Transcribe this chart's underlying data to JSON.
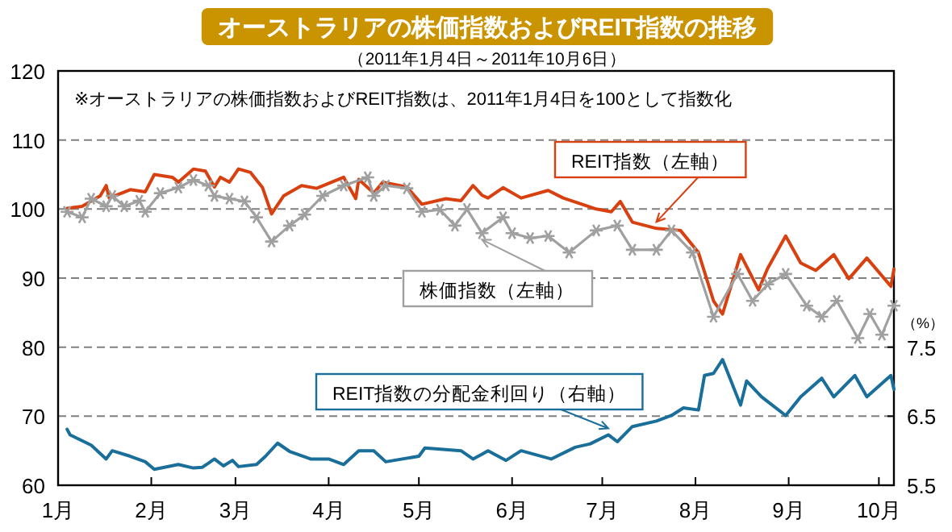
{
  "chart_data": {
    "type": "line",
    "title": "オーストラリアの株価指数およびREIT指数の推移",
    "subtitle": "（2011年1月4日～2011年10月6日）",
    "annotations": [
      "※オーストラリアの株価指数およびREIT指数は、2011年1月4日を100として指数化"
    ],
    "y2label": "（%）",
    "xlim": [
      "2011-01-01",
      "2011-10-06"
    ],
    "xticks": [
      {
        "value": "2011-01-01",
        "label": "1月"
      },
      {
        "value": "2011-02-01",
        "label": "2月"
      },
      {
        "value": "2011-03-01",
        "label": "3月"
      },
      {
        "value": "2011-04-01",
        "label": "4月"
      },
      {
        "value": "2011-05-01",
        "label": "5月"
      },
      {
        "value": "2011-06-01",
        "label": "6月"
      },
      {
        "value": "2011-07-01",
        "label": "7月"
      },
      {
        "value": "2011-08-01",
        "label": "8月"
      },
      {
        "value": "2011-09-01",
        "label": "9月"
      },
      {
        "value": "2011-10-01",
        "label": "10月"
      }
    ],
    "ylim": [
      60,
      120
    ],
    "yticks": [
      60,
      70,
      80,
      90,
      100,
      110,
      120
    ],
    "y2lim": [
      5.5,
      11.5
    ],
    "y2ticks": [
      5.5,
      6.5,
      7.5
    ],
    "grid": "y",
    "series": [
      {
        "name": "REIT指数（左軸）",
        "color": "#d9400f",
        "x": [
          "2011-01-04",
          "2011-01-09",
          "2011-01-15",
          "2011-01-17",
          "2011-01-18",
          "2011-01-25",
          "2011-01-30",
          "2011-02-02",
          "2011-02-08",
          "2011-02-10",
          "2011-02-15",
          "2011-02-19",
          "2011-02-22",
          "2011-02-24",
          "2011-02-27",
          "2011-03-02",
          "2011-03-06",
          "2011-03-10",
          "2011-03-13",
          "2011-03-17",
          "2011-03-23",
          "2011-03-28",
          "2011-04-06",
          "2011-04-10",
          "2011-04-11",
          "2011-04-16",
          "2011-04-19",
          "2011-04-27",
          "2011-05-02",
          "2011-05-10",
          "2011-05-15",
          "2011-05-19",
          "2011-05-22",
          "2011-05-24",
          "2011-05-29",
          "2011-06-04",
          "2011-06-13",
          "2011-06-18",
          "2011-06-29",
          "2011-07-04",
          "2011-07-07",
          "2011-07-11",
          "2011-07-19",
          "2011-07-27",
          "2011-08-02",
          "2011-08-07",
          "2011-08-10",
          "2011-08-16",
          "2011-08-22",
          "2011-08-25",
          "2011-08-31",
          "2011-09-05",
          "2011-09-10",
          "2011-09-16",
          "2011-09-21",
          "2011-09-27",
          "2011-10-05",
          "2011-10-06"
        ],
        "values": [
          100.1,
          100.4,
          101.9,
          103.4,
          101.6,
          102.8,
          102.5,
          105,
          104.6,
          103.9,
          105.8,
          105.5,
          103.2,
          104.6,
          103.9,
          105.8,
          105.3,
          103.1,
          99.3,
          101.9,
          103.4,
          103,
          104.6,
          101.5,
          104.3,
          102.3,
          103.9,
          103.2,
          100.7,
          101.5,
          101.2,
          103.4,
          102,
          101.6,
          103.1,
          101.6,
          102.7,
          101.6,
          100,
          99.6,
          101.1,
          98.1,
          97.2,
          96.9,
          93.7,
          86.7,
          84.8,
          93.4,
          88.3,
          91.4,
          96.1,
          92.2,
          91.1,
          93.4,
          89.9,
          92.9,
          88.8,
          91.3
        ]
      },
      {
        "name": "株価指数（左軸）",
        "color": "#a0a0a0",
        "marker": "cross",
        "x": [
          "2011-01-04",
          "2011-01-09",
          "2011-01-12",
          "2011-01-17",
          "2011-01-19",
          "2011-01-23",
          "2011-01-28",
          "2011-01-30",
          "2011-02-04",
          "2011-02-10",
          "2011-02-15",
          "2011-02-20",
          "2011-02-22",
          "2011-02-27",
          "2011-03-04",
          "2011-03-08",
          "2011-03-13",
          "2011-03-19",
          "2011-03-24",
          "2011-03-30",
          "2011-04-06",
          "2011-04-14",
          "2011-04-16",
          "2011-04-20",
          "2011-04-27",
          "2011-05-02",
          "2011-05-08",
          "2011-05-13",
          "2011-05-17",
          "2011-05-22",
          "2011-05-29",
          "2011-06-01",
          "2011-06-07",
          "2011-06-13",
          "2011-06-20",
          "2011-06-29",
          "2011-07-06",
          "2011-07-11",
          "2011-07-19",
          "2011-07-24",
          "2011-07-31",
          "2011-08-07",
          "2011-08-15",
          "2011-08-20",
          "2011-08-25",
          "2011-08-31",
          "2011-09-07",
          "2011-09-12",
          "2011-09-17",
          "2011-09-24",
          "2011-09-28",
          "2011-10-02",
          "2011-10-06"
        ],
        "values": [
          99.6,
          98.8,
          101.5,
          100.4,
          101.9,
          100.4,
          101.2,
          99.6,
          102.3,
          103.1,
          104.2,
          103.4,
          101.9,
          101.5,
          101.1,
          98.8,
          95.3,
          97.6,
          99.2,
          101.9,
          103.4,
          104.6,
          101.9,
          103.4,
          103,
          99.6,
          99.9,
          97.6,
          100,
          96.5,
          98.8,
          96.5,
          95.8,
          96.1,
          93.7,
          96.9,
          97.6,
          94.1,
          94.1,
          96.9,
          93.7,
          84.4,
          90.6,
          86.7,
          89.1,
          90.6,
          86,
          84.4,
          86.7,
          81.3,
          84.8,
          81.8,
          86
        ]
      },
      {
        "name": "REIT指数の分配金利回り（右軸）",
        "color": "#1a6e9a",
        "axis": "y2",
        "x": [
          "2011-01-04",
          "2011-01-05",
          "2011-01-12",
          "2011-01-17",
          "2011-01-19",
          "2011-01-25",
          "2011-01-30",
          "2011-02-02",
          "2011-02-10",
          "2011-02-15",
          "2011-02-18",
          "2011-02-22",
          "2011-02-25",
          "2011-02-28",
          "2011-03-02",
          "2011-03-08",
          "2011-03-11",
          "2011-03-15",
          "2011-03-19",
          "2011-03-26",
          "2011-04-01",
          "2011-04-06",
          "2011-04-11",
          "2011-04-16",
          "2011-04-20",
          "2011-05-01",
          "2011-05-03",
          "2011-05-15",
          "2011-05-19",
          "2011-05-22",
          "2011-05-24",
          "2011-05-30",
          "2011-06-04",
          "2011-06-14",
          "2011-06-22",
          "2011-06-27",
          "2011-07-03",
          "2011-07-06",
          "2011-07-11",
          "2011-07-19",
          "2011-07-24",
          "2011-07-28",
          "2011-08-02",
          "2011-08-04",
          "2011-08-07",
          "2011-08-10",
          "2011-08-16",
          "2011-08-18",
          "2011-08-23",
          "2011-08-31",
          "2011-09-05",
          "2011-09-12",
          "2011-09-16",
          "2011-09-23",
          "2011-09-27",
          "2011-10-05",
          "2011-10-06"
        ],
        "values": [
          6.31,
          6.23,
          6.08,
          5.88,
          6.0,
          5.92,
          5.84,
          5.73,
          5.8,
          5.75,
          5.76,
          5.88,
          5.78,
          5.86,
          5.77,
          5.8,
          5.92,
          6.11,
          5.99,
          5.88,
          5.88,
          5.8,
          6.0,
          6.0,
          5.84,
          5.92,
          6.04,
          6.0,
          5.88,
          5.95,
          6.0,
          5.86,
          6.0,
          5.88,
          6.05,
          6.1,
          6.23,
          6.13,
          6.35,
          6.43,
          6.51,
          6.62,
          6.59,
          7.09,
          7.12,
          7.32,
          6.66,
          7.01,
          6.78,
          6.51,
          6.78,
          7.05,
          6.78,
          7.09,
          6.78,
          7.09,
          6.89
        ]
      }
    ]
  }
}
